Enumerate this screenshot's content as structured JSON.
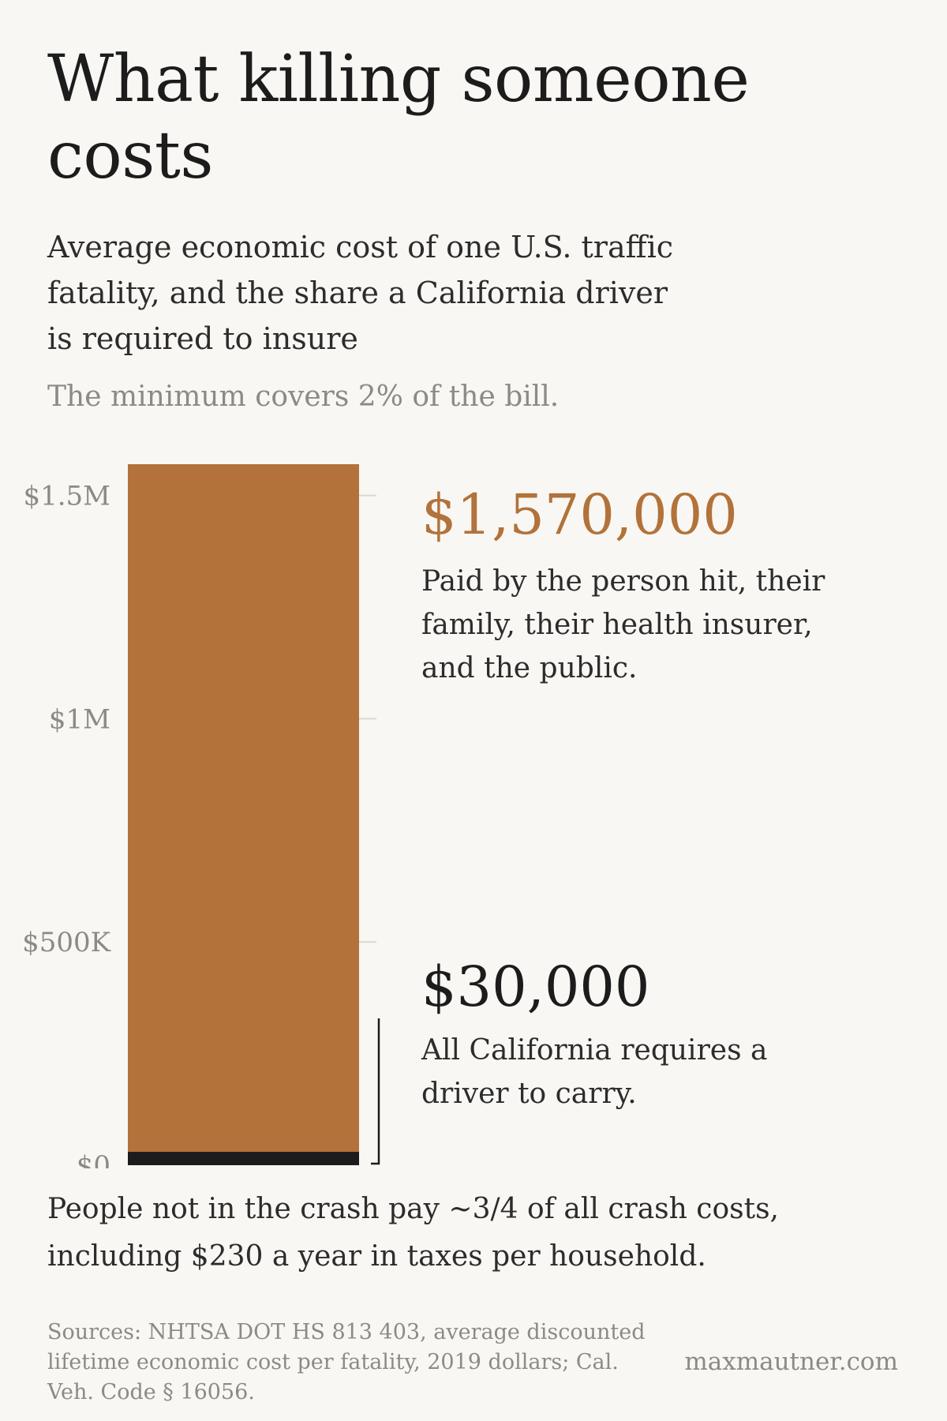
{
  "title": "What killing someone costs",
  "subtitle": "Average economic cost of one U.S. traffic fatality, and the share a California driver is required to insure",
  "deck": "The minimum covers 2% of the bill.",
  "annotations": {
    "total_value": "$1,570,000",
    "total_note": "Paid by the person hit, their family, their health insurer, and the public.",
    "minimum_value": "$30,000",
    "minimum_note": "All California requires a driver to carry."
  },
  "footnote": "People not in the crash pay ~3/4 of all crash costs, including $230 a year in taxes per household.",
  "sources": "Sources: NHTSA DOT HS 813 403, average discounted lifetime economic cost per fatality, 2019 dollars; Cal. Veh. Code § 16056.",
  "credit": "maxmautner.com",
  "colors": {
    "background": "#f8f7f3",
    "total_bar": "#b2723a",
    "minimum_bar": "#1c1c1c",
    "tick_label": "#8c8a86",
    "gridline": "#dcd8cc"
  },
  "chart_data": {
    "type": "bar",
    "stacked": true,
    "categories": [
      ""
    ],
    "series": [
      {
        "values": [
          30000
        ]
      },
      {
        "values": [
          1540000
        ]
      }
    ],
    "y_ticks": [
      0,
      500000,
      1000000,
      1500000
    ],
    "y_tick_labels": [
      "$0",
      "$500K",
      "$1M",
      "$1.5M"
    ],
    "ylim": [
      0,
      1570000
    ],
    "grid": false,
    "legend": "none"
  }
}
